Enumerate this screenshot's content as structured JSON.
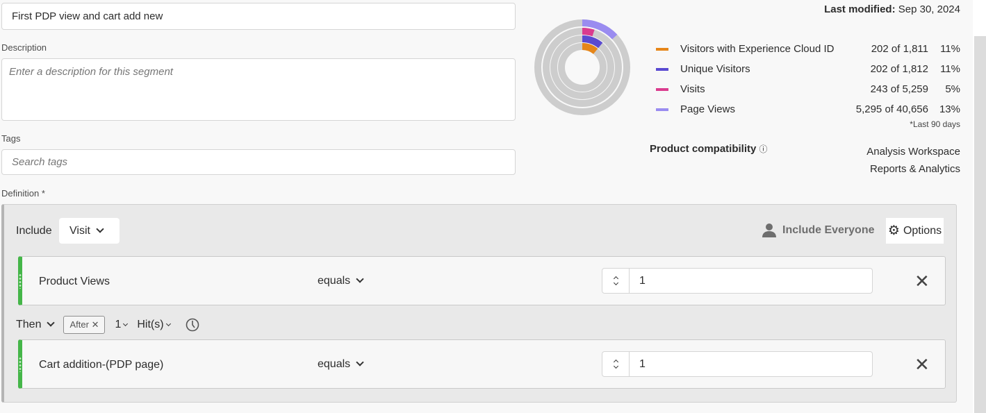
{
  "title_value": "First PDP view and cart add new",
  "description": {
    "label": "Description",
    "placeholder": "Enter a description for this segment"
  },
  "tags": {
    "label": "Tags",
    "placeholder": "Search tags"
  },
  "definition": {
    "label": "Definition",
    "required_mark": "*",
    "include_label": "Include",
    "scope": "Visit",
    "include_everyone": "Include Everyone",
    "options": "Options",
    "rules": [
      {
        "dimension": "Product Views",
        "operator": "equals",
        "value": "1"
      },
      {
        "dimension": "Cart addition-(PDP page)",
        "operator": "equals",
        "value": "1"
      }
    ],
    "sequence": {
      "then": "Then",
      "after": "After",
      "count": "1",
      "unit": "Hit(s)"
    }
  },
  "last_modified": {
    "label": "Last modified:",
    "value": "Sep 30, 2024"
  },
  "summary": {
    "metrics": [
      {
        "name": "Visitors with Experience Cloud ID",
        "value": "202 of 1,811",
        "pct": "11%",
        "fraction": 0.11,
        "color": "#e68619"
      },
      {
        "name": "Unique Visitors",
        "value": "202 of 1,812",
        "pct": "11%",
        "fraction": 0.11,
        "color": "#5a4ad1"
      },
      {
        "name": "Visits",
        "value": "243 of 5,259",
        "pct": "5%",
        "fraction": 0.05,
        "color": "#da3c8f"
      },
      {
        "name": "Page Views",
        "value": "5,295 of 40,656",
        "pct": "13%",
        "fraction": 0.13,
        "color": "#9a8cf0"
      }
    ],
    "footnote": "*Last 90 days"
  },
  "compatibility": {
    "label": "Product compatibility",
    "products": [
      "Analysis Workspace",
      "Reports & Analytics"
    ]
  }
}
